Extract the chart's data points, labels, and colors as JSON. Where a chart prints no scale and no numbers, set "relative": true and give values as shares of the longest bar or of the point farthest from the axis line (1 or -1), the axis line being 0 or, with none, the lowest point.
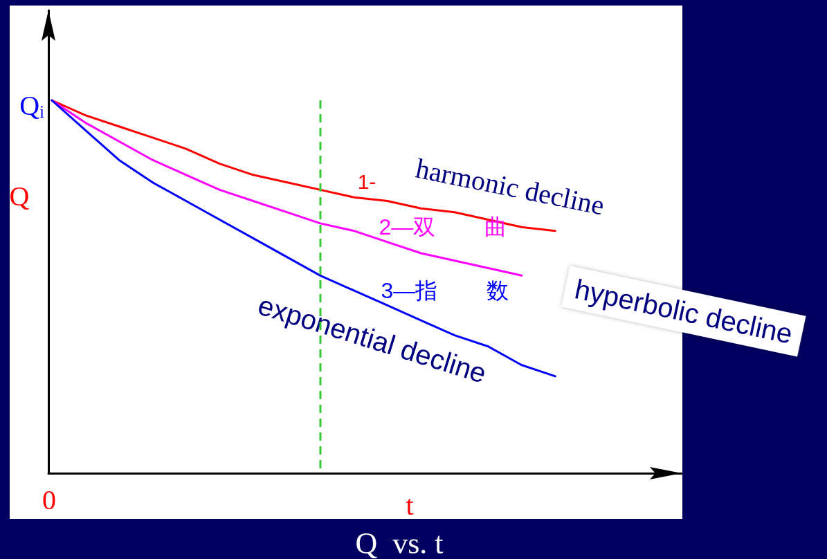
{
  "chart_data": {
    "type": "line",
    "title": "Q  vs. t",
    "xlabel": "t",
    "ylabel": "Q",
    "relative": true,
    "marker": "none",
    "line_style": "solid",
    "grid": false,
    "categories": [
      null,
      null,
      null,
      null,
      null,
      null,
      null,
      null,
      null,
      null,
      null,
      null,
      null,
      null,
      null,
      null
    ],
    "series": [
      {
        "color": "#ff0000",
        "values": [
          1,
          0.96,
          0.93,
          0.9,
          0.87,
          0.83,
          0.8,
          0.78,
          0.76,
          0.74,
          0.73,
          0.71,
          0.7,
          0.68,
          0.66,
          0.65
        ]
      },
      {
        "color": "#ff00ff",
        "values": [
          1,
          0.94,
          0.89,
          0.84,
          0.8,
          0.76,
          0.73,
          0.7,
          0.67,
          0.65,
          0.62,
          0.59,
          0.57,
          0.55,
          0.53,
          null
        ]
      },
      {
        "color": "#0000ff",
        "values": [
          1,
          0.92,
          0.84,
          0.78,
          0.73,
          0.68,
          0.63,
          0.58,
          0.53,
          0.49,
          0.45,
          0.41,
          0.37,
          0.34,
          0.29,
          0.26
        ]
      }
    ],
    "annotations": [
      "Qᵢ",
      "0",
      "harmonic decline",
      "hyperbolic decline",
      "exponential decline",
      "1-",
      "2—双        曲",
      "3—指        数"
    ]
  }
}
